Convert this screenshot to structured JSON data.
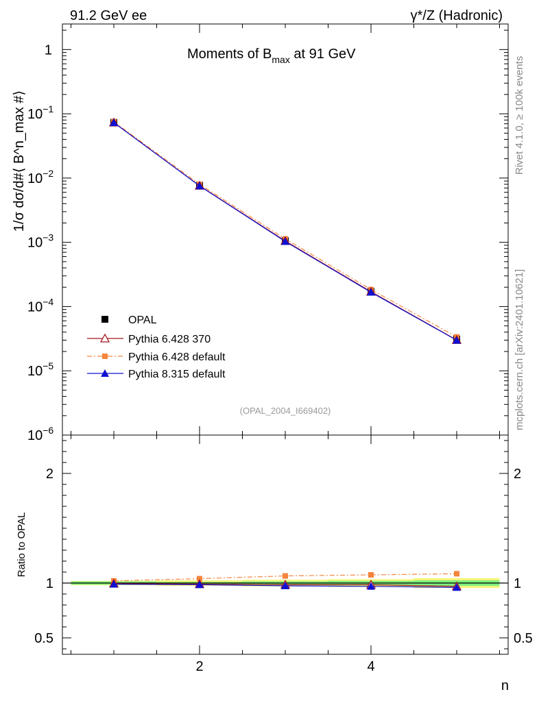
{
  "header": {
    "left": "91.2 GeV ee",
    "right": "γ*/Z (Hadronic)"
  },
  "side": {
    "rivet": "Rivet 4.1.0, ≥ 100k events",
    "mcplots": "mcplots.cern.ch [arXiv:2401.10621]"
  },
  "main": {
    "title_pre": "Moments of B",
    "title_sub": "max",
    "title_post": " at 91 GeV",
    "ylabel": "1/σ  dσ/d#⟨ B^n_max #⟩",
    "analysis_id": "(OPAL_2004_I669402)"
  },
  "ratio": {
    "ylabel": "Ratio to OPAL"
  },
  "xaxis": {
    "label": "n"
  },
  "legend": [
    {
      "label": "OPAL"
    },
    {
      "label": "Pythia 6.428 370"
    },
    {
      "label": "Pythia 6.428 default"
    },
    {
      "label": "Pythia 8.315 default"
    }
  ],
  "colors": {
    "data": "#000000",
    "p6_370": "#a4161e",
    "p6_default": "#f5843c",
    "p8_default": "#1010d0",
    "band_inner": "#7fef7f",
    "band_outer": "#f5f57a"
  },
  "chart_data": [
    {
      "type": "line",
      "title": "Moments of B_max at 91 GeV",
      "xlabel": "n",
      "ylabel": "1/σ dσ/d⟨B^n_max⟩",
      "yscale": "log",
      "xlim": [
        0.4,
        5.6
      ],
      "ylim": [
        1e-06,
        2.5
      ],
      "x": [
        1,
        2,
        3,
        4,
        5
      ],
      "yticks": [
        {
          "value": 1,
          "base": "1",
          "exp": ""
        },
        {
          "value": 0.1,
          "base": "10",
          "exp": "−1"
        },
        {
          "value": 0.01,
          "base": "10",
          "exp": "−2"
        },
        {
          "value": 0.001,
          "base": "10",
          "exp": "−3"
        },
        {
          "value": 0.0001,
          "base": "10",
          "exp": "−4"
        },
        {
          "value": 1e-05,
          "base": "10",
          "exp": "−5"
        },
        {
          "value": 1e-06,
          "base": "10",
          "exp": "−6"
        }
      ],
      "series": [
        {
          "name": "OPAL",
          "values": [
            0.0735,
            0.0077,
            0.00106,
            0.000172,
            3.12e-05
          ]
        },
        {
          "name": "Pythia 6.428 370",
          "values": [
            0.0732,
            0.0076,
            0.00105,
            0.00017,
            3.02e-05
          ]
        },
        {
          "name": "Pythia 6.428 default",
          "values": [
            0.0751,
            0.008,
            0.00113,
            0.000184,
            3.37e-05
          ]
        },
        {
          "name": "Pythia 8.315 default",
          "values": [
            0.0728,
            0.00755,
            0.00103,
            0.000167,
            2.99e-05
          ]
        }
      ]
    },
    {
      "type": "line",
      "title": "",
      "xlabel": "n",
      "ylabel": "Ratio to OPAL",
      "xlim": [
        0.4,
        5.6
      ],
      "ylim": [
        0.35,
        2.35
      ],
      "x": [
        1,
        2,
        3,
        4,
        5
      ],
      "xticks": [
        2,
        4
      ],
      "yticks": [
        0.5,
        1,
        2
      ],
      "band_inner": {
        "x": [
          0.5,
          1.5,
          2.5,
          3.5,
          4.5,
          5.5
        ],
        "lo": [
          0.985,
          0.99,
          0.985,
          0.98,
          0.975,
          0.975
        ],
        "hi": [
          1.015,
          1.01,
          1.015,
          1.02,
          1.025,
          1.025
        ]
      },
      "band_outer": {
        "x": [
          0.5,
          1.5,
          2.5,
          3.5,
          4.5,
          5.5
        ],
        "lo": [
          0.98,
          0.975,
          0.97,
          0.965,
          0.955,
          0.955
        ],
        "hi": [
          1.02,
          1.025,
          1.03,
          1.035,
          1.045,
          1.045
        ]
      },
      "series": [
        {
          "name": "OPAL",
          "values": [
            1.0,
            1.0,
            1.0,
            1.0,
            1.0
          ]
        },
        {
          "name": "Pythia 6.428 370",
          "values": [
            0.995,
            0.99,
            0.985,
            0.985,
            0.97
          ]
        },
        {
          "name": "Pythia 6.428 default",
          "values": [
            1.02,
            1.04,
            1.065,
            1.075,
            1.085
          ]
        },
        {
          "name": "Pythia 8.315 default",
          "values": [
            0.99,
            0.985,
            0.975,
            0.97,
            0.96
          ]
        }
      ]
    }
  ]
}
